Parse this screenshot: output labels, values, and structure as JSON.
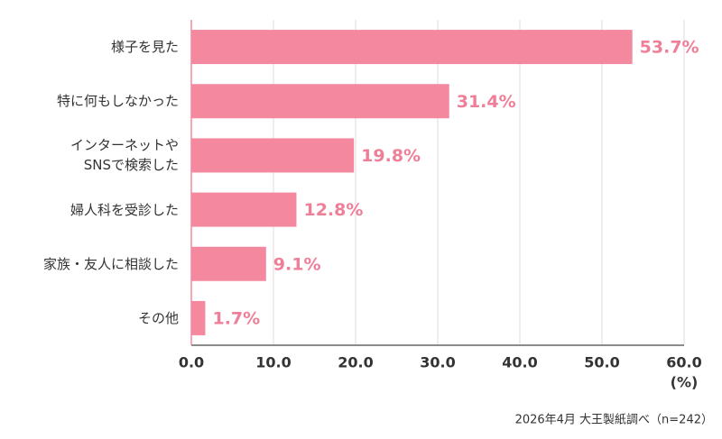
{
  "chart_data": {
    "type": "bar",
    "orientation": "horizontal",
    "categories": [
      "様子を見た",
      "特に何もしなかった",
      "インターネットや\nSNSで検索した",
      "婦人科を受診した",
      "家族・友人に相談した",
      "その他"
    ],
    "values": [
      53.7,
      31.4,
      19.8,
      12.8,
      9.1,
      1.7
    ],
    "value_labels": [
      "53.7%",
      "31.4%",
      "19.8%",
      "12.8%",
      "9.1%",
      "1.7%"
    ],
    "color": "#f4889f",
    "xlim": [
      0,
      60
    ],
    "xticks": [
      {
        "value": 0,
        "label": "0.0"
      },
      {
        "value": 10,
        "label": "10.0"
      },
      {
        "value": 20,
        "label": "20.0"
      },
      {
        "value": 30,
        "label": "30.0"
      },
      {
        "value": 40,
        "label": "40.0"
      },
      {
        "value": 50,
        "label": "50.0"
      },
      {
        "value": 60,
        "label": "60.0"
      }
    ],
    "x_label": "(%)",
    "grid": true,
    "footnote": "2026年4月 大王製紙調べ（n=242）"
  }
}
